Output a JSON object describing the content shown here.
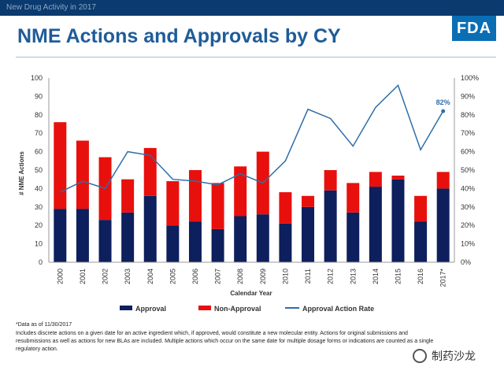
{
  "header": {
    "text": "New Drug Activity in 2017"
  },
  "logo": {
    "text": "FDA"
  },
  "title": "NME Actions and Approvals by CY",
  "watermark": {
    "text": "制药沙龙",
    "icon": "wechat-icon"
  },
  "notes": {
    "line1": "*Data as of  11/30/2017",
    "line2": "Includes discrete actions on a given date for an active ingredient which, if approved, would constitute a new molecular entity.   Actions for original submissions and resubmissions as well as actions for new BLAs are included.  Multiple actions which occur on the same date for multiple dosage forms or indications are counted as a single regulatory action."
  },
  "colors": {
    "approval": "#0d1f5c",
    "non_approval": "#e8100d",
    "rate": "#2e6ea8",
    "title": "#1f5c99"
  },
  "chart_data": {
    "type": "bar",
    "stacked": true,
    "categories": [
      "2000",
      "2001",
      "2002",
      "2003",
      "2004",
      "2005",
      "2006",
      "2007",
      "2008",
      "2009",
      "2010",
      "2011",
      "2012",
      "2013",
      "2014",
      "2015",
      "2016",
      "2017*"
    ],
    "series": [
      {
        "name": "Approval",
        "values": [
          29,
          29,
          23,
          27,
          36,
          20,
          22,
          18,
          25,
          26,
          21,
          30,
          39,
          27,
          41,
          45,
          22,
          40
        ]
      },
      {
        "name": "Non-Approval",
        "values": [
          47,
          37,
          34,
          18,
          26,
          24,
          28,
          25,
          27,
          34,
          17,
          6,
          11,
          16,
          8,
          2,
          14,
          9
        ]
      }
    ],
    "line_series": {
      "name": "Approval Action Rate",
      "values": [
        38,
        44,
        40,
        60,
        58,
        45,
        44,
        42,
        48,
        43,
        55,
        83,
        78,
        63,
        84,
        96,
        61,
        82
      ]
    },
    "ylabel": "# NME Actions",
    "xlabel": "Calendar Year",
    "ylim": [
      0,
      100
    ],
    "yticks": [
      0,
      10,
      20,
      30,
      40,
      50,
      60,
      70,
      80,
      90,
      100
    ],
    "y2lim": [
      0,
      100
    ],
    "y2ticks": [
      "0%",
      "10%",
      "20%",
      "30%",
      "40%",
      "50%",
      "60%",
      "70%",
      "80%",
      "90%",
      "100%"
    ],
    "annotation": "82%",
    "legend_position": "bottom",
    "grid": false
  }
}
